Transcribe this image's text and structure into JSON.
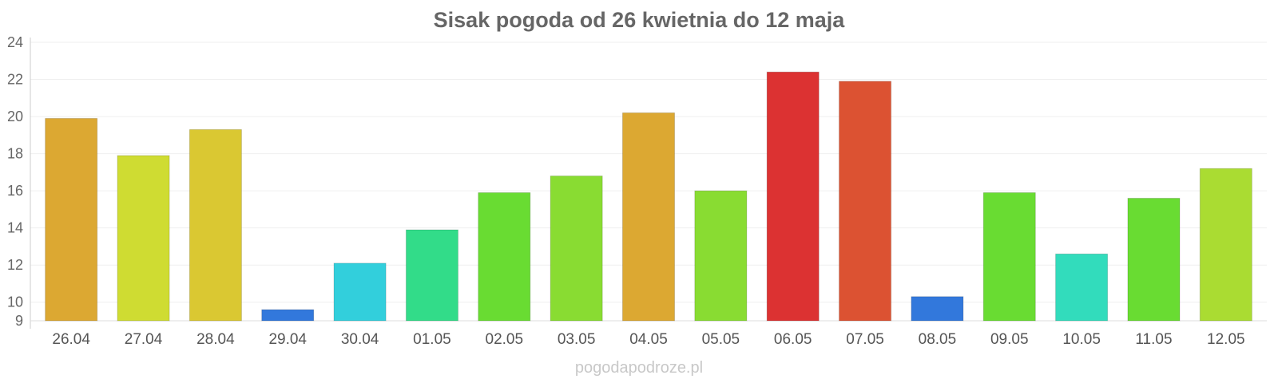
{
  "watermark": "pogodapodroze.pl",
  "chart_data": {
    "type": "bar",
    "title": "Sisak pogoda od 26 kwietnia do 12 maja",
    "xlabel": "",
    "ylabel": "",
    "ylim": [
      9,
      24
    ],
    "yticks": [
      9,
      10,
      12,
      14,
      16,
      18,
      20,
      22,
      24
    ],
    "grid": true,
    "categories": [
      "26.04",
      "27.04",
      "28.04",
      "29.04",
      "30.04",
      "01.05",
      "02.05",
      "03.05",
      "04.05",
      "05.05",
      "06.05",
      "07.05",
      "08.05",
      "09.05",
      "10.05",
      "11.05",
      "12.05"
    ],
    "values": [
      19.9,
      17.9,
      19.3,
      9.6,
      12.1,
      13.9,
      15.9,
      16.8,
      20.2,
      16.0,
      22.4,
      21.9,
      10.3,
      15.9,
      12.6,
      15.6,
      17.2
    ],
    "colors": [
      "#dca832",
      "#cfdc32",
      "#dac832",
      "#3278dc",
      "#32cfdc",
      "#32dc89",
      "#69dc32",
      "#89dc32",
      "#dca832",
      "#89dc32",
      "#dc3232",
      "#dc5232",
      "#3278dc",
      "#69dc32",
      "#32dcbc",
      "#69dc32",
      "#aadc32"
    ]
  }
}
